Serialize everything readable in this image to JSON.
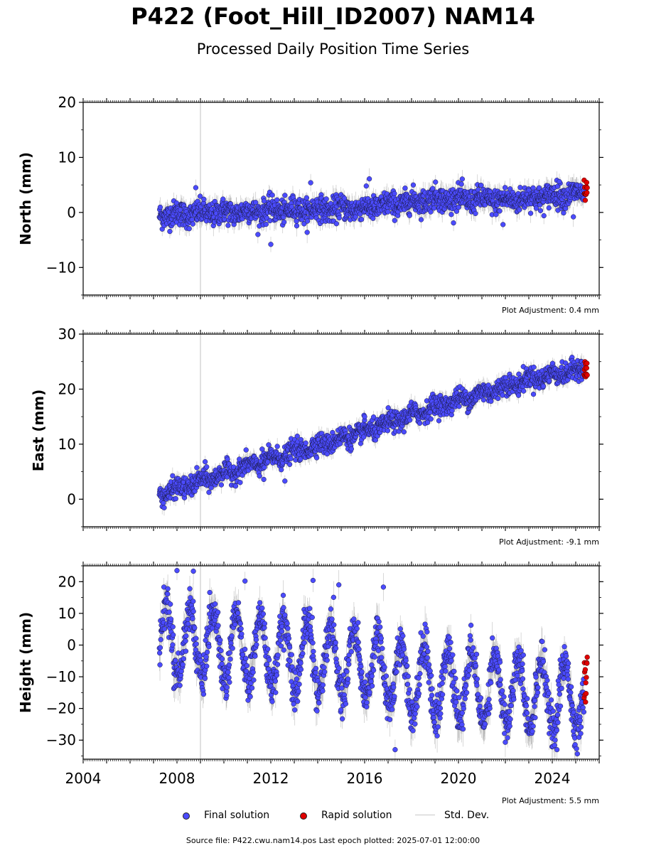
{
  "header": {
    "title": "P422 (Foot_Hill_ID2007) NAM14",
    "subtitle": "Processed Daily Position Time Series"
  },
  "legend": {
    "final": "Final solution",
    "rapid": "Rapid solution",
    "stddev": "Std. Dev."
  },
  "footer": {
    "source": "Source file: P422.cwu.nam14.pos  Last epoch plotted: 2025-07-01 12:00:00"
  },
  "colors": {
    "final": "#4b4bff",
    "rapid": "#e00000",
    "stddev": "#9a9a9a",
    "vline": "#cccccc"
  },
  "chart_data": [
    {
      "type": "scatter",
      "ylabel": "North (mm)",
      "adjustment": "Plot Adjustment: 0.4 mm",
      "xlim": [
        2004,
        2026
      ],
      "ylim": [
        -15,
        20
      ],
      "yticks": [
        -10,
        0,
        10,
        20
      ],
      "grid": false,
      "vertical_line_x": 2009.0,
      "data_start": 2007.25,
      "rapid_start": 2025.35,
      "data_end": 2025.5,
      "trend": [
        [
          2007.25,
          -0.5
        ],
        [
          2012,
          0.3
        ],
        [
          2016,
          0.8
        ],
        [
          2019,
          2.5
        ],
        [
          2022,
          2.2
        ],
        [
          2025.5,
          3.6
        ]
      ],
      "scatter_sd": 1.1,
      "seasonal_amp": 0.4,
      "outliers": [
        [
          2008.8,
          4.5
        ],
        [
          2012.0,
          -5.8
        ],
        [
          2013.7,
          5.4
        ],
        [
          2016.2,
          6.1
        ],
        [
          2021.9,
          -2.2
        ],
        [
          2024.9,
          -0.8
        ],
        [
          2024.3,
          5.6
        ]
      ]
    },
    {
      "type": "scatter",
      "ylabel": "East (mm)",
      "adjustment": "Plot Adjustment: -9.1 mm",
      "xlim": [
        2004,
        2026
      ],
      "ylim": [
        -5,
        30
      ],
      "yticks": [
        0,
        10,
        20,
        30
      ],
      "grid": false,
      "vertical_line_x": 2009.0,
      "data_start": 2007.25,
      "rapid_start": 2025.35,
      "data_end": 2025.5,
      "trend": [
        [
          2007.25,
          0.8
        ],
        [
          2010,
          4.6
        ],
        [
          2013,
          8.6
        ],
        [
          2016,
          12.2
        ],
        [
          2019,
          16.8
        ],
        [
          2021,
          19.2
        ],
        [
          2023,
          21.8
        ],
        [
          2025.5,
          23.8
        ]
      ],
      "scatter_sd": 0.9,
      "seasonal_amp": 0.5,
      "outliers": [
        [
          2009.2,
          6.8
        ],
        [
          2011.7,
          3.6
        ],
        [
          2012.6,
          3.3
        ],
        [
          2016.0,
          15.0
        ]
      ]
    },
    {
      "type": "scatter",
      "ylabel": "Height (mm)",
      "adjustment": "Plot Adjustment: 5.5 mm",
      "xlim": [
        2004,
        2026
      ],
      "ylim": [
        -36,
        25
      ],
      "yticks": [
        -30,
        -20,
        -10,
        0,
        10,
        20
      ],
      "xticks": [
        2004,
        2008,
        2012,
        2016,
        2020,
        2024
      ],
      "grid": false,
      "vertical_line_x": 2009.0,
      "data_start": 2007.25,
      "rapid_start": 2025.35,
      "data_end": 2025.5,
      "trend": [
        [
          2007.25,
          2.0
        ],
        [
          2010,
          -1.0
        ],
        [
          2013,
          -3.0
        ],
        [
          2016,
          -6.0
        ],
        [
          2018,
          -11.0
        ],
        [
          2020,
          -13.0
        ],
        [
          2022,
          -14.0
        ],
        [
          2025.5,
          -17.0
        ]
      ],
      "scatter_sd": 3.2,
      "seasonal_amp": 11.0,
      "seasonal_phase": 0.55,
      "outliers": [
        [
          2008.0,
          23.5
        ],
        [
          2008.7,
          23.3
        ],
        [
          2010.9,
          20.2
        ],
        [
          2013.8,
          20.4
        ],
        [
          2014.9,
          19.0
        ],
        [
          2017.3,
          -33.0
        ],
        [
          2024.2,
          -33.0
        ],
        [
          2016.8,
          18.3
        ]
      ]
    }
  ]
}
